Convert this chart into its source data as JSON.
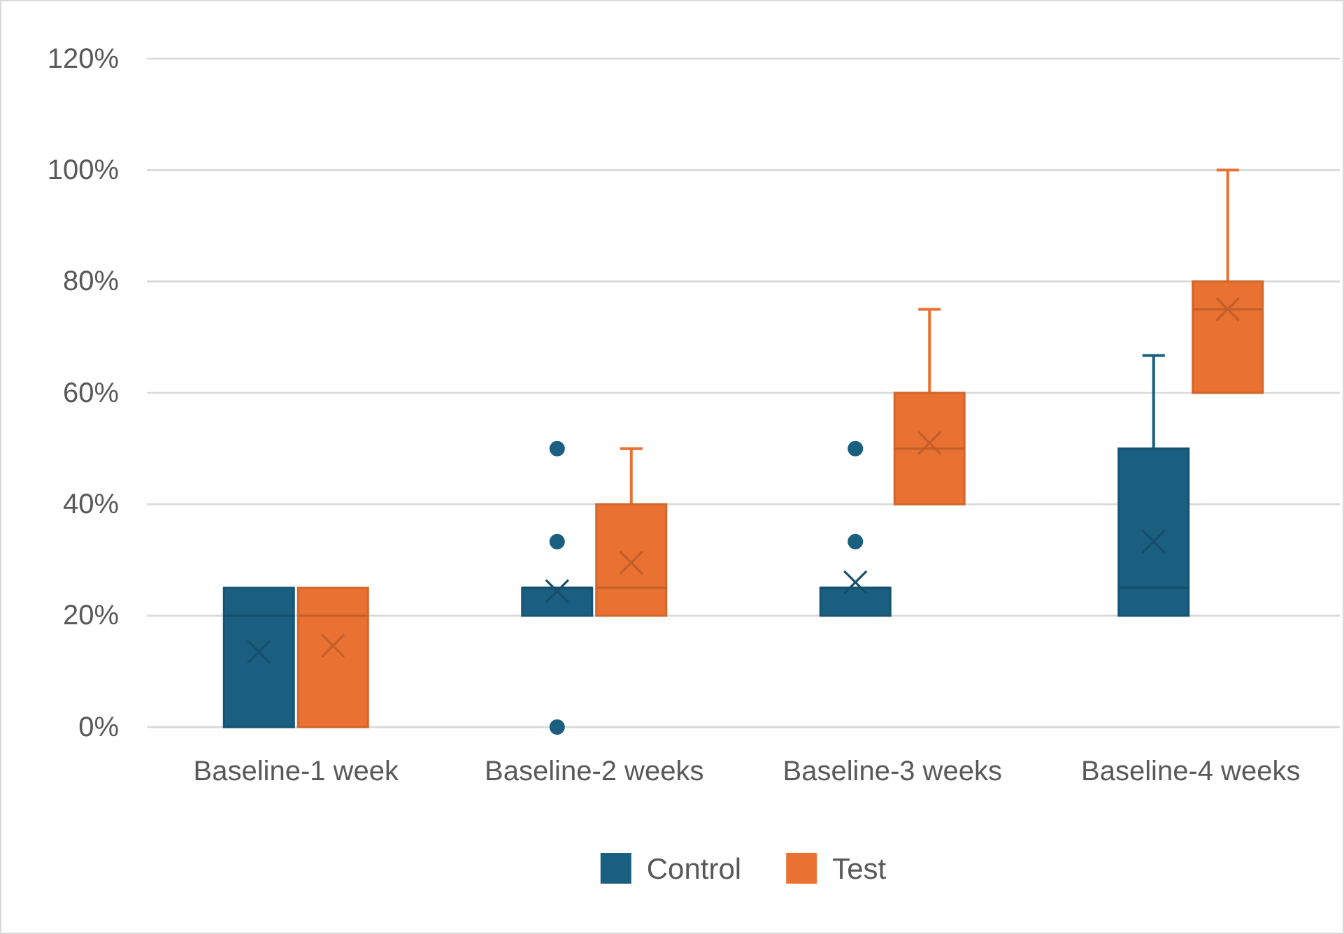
{
  "chart_data": {
    "type": "box",
    "categories": [
      "Baseline-1 week",
      "Baseline-2 weeks",
      "Baseline-3 weeks",
      "Baseline-4 weeks"
    ],
    "series": [
      {
        "name": "Control",
        "color": "#1a5e80",
        "boxes": [
          {
            "low": 0,
            "q1": 0,
            "median": 20,
            "q3": 25,
            "high": 25,
            "mean": 13.5
          },
          {
            "low": 20,
            "q1": 20,
            "median": 25,
            "q3": 25,
            "high": 25,
            "mean": 24.4,
            "outliers": [
              0,
              33.3,
              50
            ]
          },
          {
            "low": 20,
            "q1": 20,
            "median": 25,
            "q3": 25,
            "high": 25,
            "mean": 26,
            "outliers": [
              33.3,
              50
            ]
          },
          {
            "low": 20,
            "q1": 20,
            "median": 25,
            "q3": 50,
            "high": 66.7,
            "mean": 33.3
          }
        ]
      },
      {
        "name": "Test",
        "color": "#e97132",
        "boxes": [
          {
            "low": 0,
            "q1": 0,
            "median": 20,
            "q3": 25,
            "high": 25,
            "mean": 14.6
          },
          {
            "low": 20,
            "q1": 20,
            "median": 25,
            "q3": 40,
            "high": 50,
            "mean": 29.5
          },
          {
            "low": 40,
            "q1": 40,
            "median": 50,
            "q3": 60,
            "high": 75,
            "mean": 51
          },
          {
            "low": 60,
            "q1": 60,
            "median": 75,
            "q3": 80,
            "high": 100,
            "mean": 75
          }
        ]
      }
    ],
    "ylim": [
      0,
      120
    ],
    "yticks": [
      {
        "value": 0,
        "label": "0%"
      },
      {
        "value": 20,
        "label": "20%"
      },
      {
        "value": 40,
        "label": "40%"
      },
      {
        "value": 60,
        "label": "60%"
      },
      {
        "value": 80,
        "label": "80%"
      },
      {
        "value": 100,
        "label": "100%"
      },
      {
        "value": 120,
        "label": "120%"
      }
    ],
    "grid": "y",
    "legend": "bottom"
  }
}
